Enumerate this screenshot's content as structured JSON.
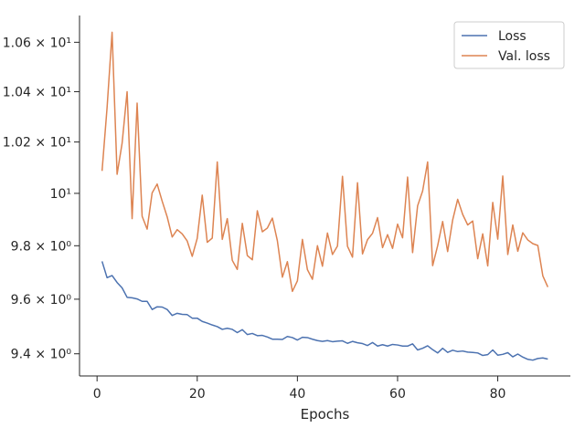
{
  "chart_data": {
    "type": "line",
    "title": "",
    "xlabel": "Epochs",
    "ylabel": "",
    "yscale": "log",
    "xlim": [
      -3.5,
      94.5
    ],
    "ylim": [
      9.32,
      10.71
    ],
    "grid": false,
    "legend_position": "top-right",
    "x_ticks": [
      0,
      20,
      40,
      60,
      80
    ],
    "x_tick_labels": [
      "0",
      "20",
      "40",
      "60",
      "80"
    ],
    "y_ticks": [
      9.4,
      9.6,
      9.8,
      10,
      10.2,
      10.4,
      10.6
    ],
    "y_tick_labels": [
      "9.4 × 10⁰",
      "9.6 × 10⁰",
      "9.8 × 10⁰",
      "10¹",
      "1.02 × 10¹",
      "1.04 × 10¹",
      "1.06 × 10¹"
    ],
    "x": [
      1,
      2,
      3,
      4,
      5,
      6,
      7,
      8,
      9,
      10,
      11,
      12,
      13,
      14,
      15,
      16,
      17,
      18,
      19,
      20,
      21,
      22,
      23,
      24,
      25,
      26,
      27,
      28,
      29,
      30,
      31,
      32,
      33,
      34,
      35,
      36,
      37,
      38,
      39,
      40,
      41,
      42,
      43,
      44,
      45,
      46,
      47,
      48,
      49,
      50,
      51,
      52,
      53,
      54,
      55,
      56,
      57,
      58,
      59,
      60,
      61,
      62,
      63,
      64,
      65,
      66,
      67,
      68,
      69,
      70,
      71,
      72,
      73,
      74,
      75,
      76,
      77,
      78,
      79,
      80,
      81,
      82,
      83,
      84,
      85,
      86,
      87,
      88,
      89,
      90
    ],
    "series": [
      {
        "name": "Loss",
        "color": "#4c72b0",
        "values": [
          9.741,
          9.68,
          9.688,
          9.662,
          9.642,
          9.607,
          9.605,
          9.601,
          9.592,
          9.592,
          9.562,
          9.572,
          9.571,
          9.562,
          9.54,
          9.548,
          9.544,
          9.543,
          9.53,
          9.53,
          9.518,
          9.512,
          9.505,
          9.499,
          9.489,
          9.493,
          9.489,
          9.477,
          9.488,
          9.47,
          9.474,
          9.466,
          9.467,
          9.461,
          9.453,
          9.453,
          9.452,
          9.463,
          9.459,
          9.45,
          9.46,
          9.459,
          9.453,
          9.448,
          9.445,
          9.448,
          9.444,
          9.446,
          9.447,
          9.438,
          9.445,
          9.44,
          9.437,
          9.43,
          9.441,
          9.428,
          9.433,
          9.428,
          9.434,
          9.432,
          9.428,
          9.428,
          9.436,
          9.414,
          9.42,
          9.429,
          9.415,
          9.403,
          9.42,
          9.405,
          9.413,
          9.408,
          9.41,
          9.406,
          9.405,
          9.403,
          9.394,
          9.397,
          9.414,
          9.395,
          9.398,
          9.404,
          9.389,
          9.399,
          9.388,
          9.38,
          9.377,
          9.383,
          9.385,
          9.381
        ]
      },
      {
        "name": "Val. loss",
        "color": "#dd8452",
        "values": [
          10.087,
          10.336,
          10.641,
          10.074,
          10.195,
          10.4,
          9.903,
          10.354,
          9.912,
          9.863,
          10.002,
          10.036,
          9.97,
          9.91,
          9.833,
          9.861,
          9.845,
          9.818,
          9.76,
          9.828,
          9.993,
          9.813,
          9.829,
          10.122,
          9.824,
          9.903,
          9.745,
          9.711,
          9.885,
          9.763,
          9.747,
          9.933,
          9.853,
          9.867,
          9.905,
          9.819,
          9.682,
          9.74,
          9.629,
          9.668,
          9.824,
          9.71,
          9.674,
          9.8,
          9.723,
          9.848,
          9.767,
          9.799,
          10.066,
          9.798,
          9.757,
          10.041,
          9.769,
          9.823,
          9.847,
          9.907,
          9.793,
          9.842,
          9.79,
          9.882,
          9.83,
          10.063,
          9.774,
          9.952,
          10.009,
          10.122,
          9.725,
          9.8,
          9.892,
          9.778,
          9.898,
          9.977,
          9.919,
          9.879,
          9.894,
          9.751,
          9.845,
          9.724,
          9.965,
          9.825,
          10.067,
          9.767,
          9.879,
          9.779,
          9.849,
          9.822,
          9.808,
          9.801,
          9.687,
          9.645
        ]
      }
    ]
  }
}
